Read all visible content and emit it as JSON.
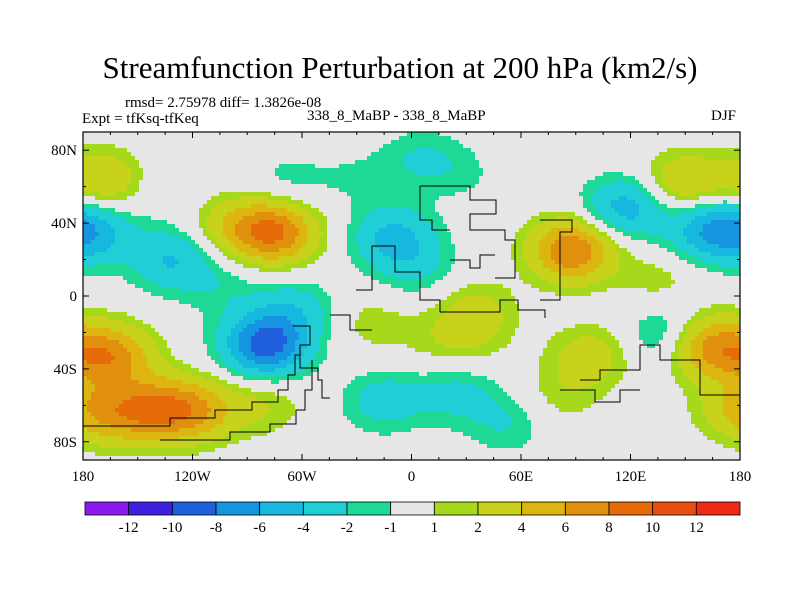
{
  "header": {
    "title": "Streamfunction Perturbation at 200 hPa (km2/s)",
    "stats": "rmsd= 2.75978  diff= 1.3826e-08",
    "expt": "Expt = tfKsq-tfKeq",
    "subtitle": "338_8_MaBP - 338_8_MaBP",
    "season": "DJF"
  },
  "chart_data": {
    "type": "heatmap",
    "title": "Streamfunction Perturbation at 200 hPa (km2/s)",
    "xlabel": "",
    "ylabel": "",
    "xlim": [
      -180,
      180
    ],
    "ylim": [
      -90,
      90
    ],
    "x_ticks": [
      {
        "value": -180,
        "label": "180"
      },
      {
        "value": -120,
        "label": "120W"
      },
      {
        "value": -60,
        "label": "60W"
      },
      {
        "value": 0,
        "label": "0"
      },
      {
        "value": 60,
        "label": "60E"
      },
      {
        "value": 120,
        "label": "120E"
      },
      {
        "value": 180,
        "label": "180"
      }
    ],
    "y_ticks": [
      {
        "value": 80,
        "label": "80N"
      },
      {
        "value": 40,
        "label": "40N"
      },
      {
        "value": 0,
        "label": "0"
      },
      {
        "value": -40,
        "label": "40S"
      },
      {
        "value": -80,
        "label": "80S"
      }
    ],
    "colorbar": {
      "colors": [
        "#8c1aeb",
        "#3f1fe0",
        "#1f5fdc",
        "#1694e0",
        "#16b8e0",
        "#20cfd6",
        "#1ed896",
        "#e6e6e6",
        "#a6d81c",
        "#c8d21a",
        "#dcb510",
        "#e0900c",
        "#e66c0a",
        "#ea4e10",
        "#ee2a14"
      ],
      "labels": [
        "-12",
        "-10",
        "-8",
        "-6",
        "-4",
        "-2",
        "-1",
        "1",
        "2",
        "4",
        "6",
        "8",
        "10",
        "12"
      ],
      "levels": [
        -12,
        -10,
        -8,
        -6,
        -4,
        -2,
        -1,
        1,
        2,
        4,
        6,
        8,
        10,
        12
      ]
    },
    "anomalies": [
      {
        "lon": -176,
        "lat": 35,
        "value": -5
      },
      {
        "lon": -168,
        "lat": 63,
        "value": 4
      },
      {
        "lon": -174,
        "lat": -8,
        "value": 0
      },
      {
        "lon": -165,
        "lat": -33,
        "value": 7
      },
      {
        "lon": -162,
        "lat": -65,
        "value": 4
      },
      {
        "lon": -140,
        "lat": -62,
        "value": 6
      },
      {
        "lon": -118,
        "lat": -63,
        "value": 5
      },
      {
        "lon": -132,
        "lat": 20,
        "value": -4
      },
      {
        "lon": -138,
        "lat": 60,
        "value": -1
      },
      {
        "lon": -75,
        "lat": 35,
        "value": 8
      },
      {
        "lon": -98,
        "lat": 38,
        "value": 3
      },
      {
        "lon": -68,
        "lat": 62,
        "value": -1.5
      },
      {
        "lon": -30,
        "lat": 65,
        "value": -1
      },
      {
        "lon": -105,
        "lat": 5,
        "value": -1.5
      },
      {
        "lon": -80,
        "lat": -27,
        "value": -9
      },
      {
        "lon": -65,
        "lat": -8,
        "value": -3
      },
      {
        "lon": -82,
        "lat": -60,
        "value": 2
      },
      {
        "lon": -22,
        "lat": -15,
        "value": 1.5
      },
      {
        "lon": -10,
        "lat": 32,
        "value": -4.5
      },
      {
        "lon": 3,
        "lat": 15,
        "value": -2
      },
      {
        "lon": 5,
        "lat": 75,
        "value": -2
      },
      {
        "lon": 28,
        "lat": 67,
        "value": -1
      },
      {
        "lon": -15,
        "lat": -58,
        "value": -3
      },
      {
        "lon": 25,
        "lat": -53,
        "value": -2.5
      },
      {
        "lon": 52,
        "lat": -70,
        "value": -2
      },
      {
        "lon": 35,
        "lat": -8,
        "value": 2.5
      },
      {
        "lon": 30,
        "lat": -25,
        "value": 1.5
      },
      {
        "lon": 12,
        "lat": -25,
        "value": 0.8
      },
      {
        "lon": 88,
        "lat": 25,
        "value": 8
      },
      {
        "lon": 98,
        "lat": -33,
        "value": 3
      },
      {
        "lon": 82,
        "lat": -55,
        "value": 1.5
      },
      {
        "lon": 117,
        "lat": 48,
        "value": -5
      },
      {
        "lon": 162,
        "lat": 36,
        "value": -5
      },
      {
        "lon": 150,
        "lat": 62,
        "value": 4
      },
      {
        "lon": 135,
        "lat": 10,
        "value": 1.5
      },
      {
        "lon": 140,
        "lat": -22,
        "value": -3
      },
      {
        "lon": 163,
        "lat": -28,
        "value": 7
      },
      {
        "lon": 177,
        "lat": -62,
        "value": 3
      }
    ]
  }
}
